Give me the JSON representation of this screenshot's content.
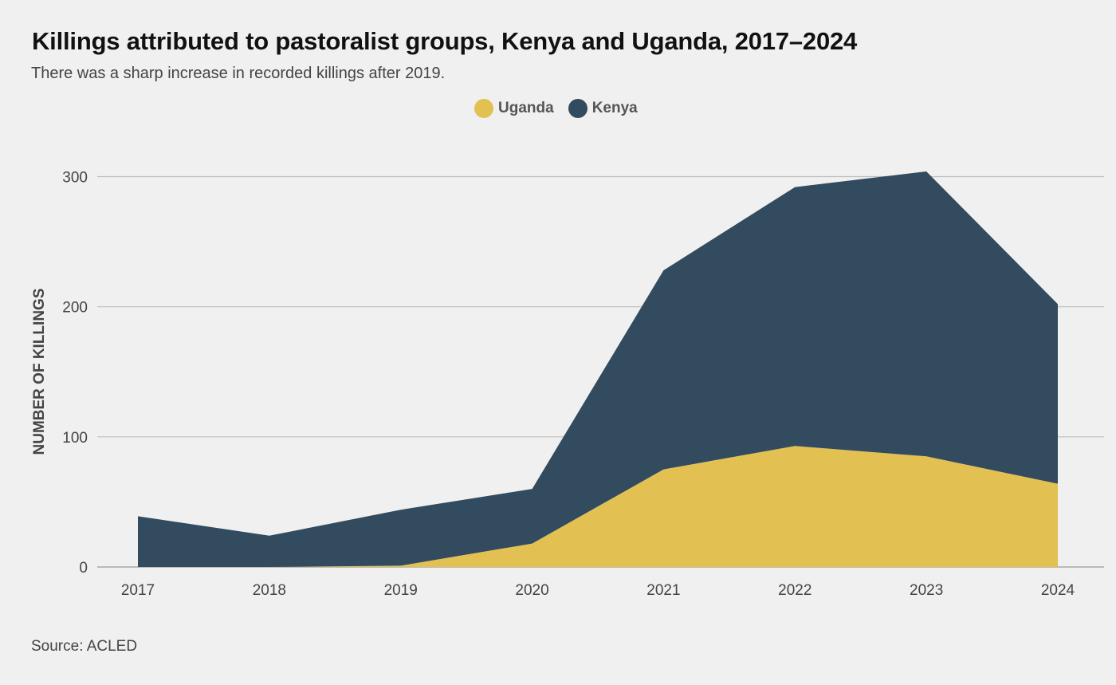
{
  "header": {
    "title": "Killings attributed to pastoralist groups, Kenya and Uganda, 2017–2024",
    "subtitle": "There was a sharp increase in recorded killings after 2019."
  },
  "legend": [
    {
      "label": "Uganda",
      "color": "#e3c052"
    },
    {
      "label": "Kenya",
      "color": "#324b5e"
    }
  ],
  "footer": {
    "source": "Source: ACLED"
  },
  "chart_data": {
    "type": "area",
    "stacked": true,
    "title": "Killings attributed to pastoralist groups, Kenya and Uganda, 2017–2024",
    "subtitle": "There was a sharp increase in recorded killings after 2019.",
    "xlabel": "",
    "ylabel": "NUMBER OF KILLINGS",
    "x": [
      "2017",
      "2018",
      "2019",
      "2020",
      "2021",
      "2022",
      "2023",
      "2024"
    ],
    "series": [
      {
        "name": "Uganda",
        "color": "#e3c052",
        "values": [
          0,
          0,
          1,
          18,
          75,
          93,
          85,
          64
        ]
      },
      {
        "name": "Kenya",
        "color": "#324b5e",
        "values": [
          39,
          24,
          43,
          42,
          153,
          199,
          219,
          138
        ]
      }
    ],
    "stack_totals": [
      39,
      24,
      44,
      60,
      228,
      292,
      304,
      202
    ],
    "ylim": [
      0,
      300
    ],
    "yticks": [
      0,
      100,
      200,
      300
    ],
    "grid": true,
    "legend_position": "top-center",
    "source": "Source: ACLED"
  }
}
